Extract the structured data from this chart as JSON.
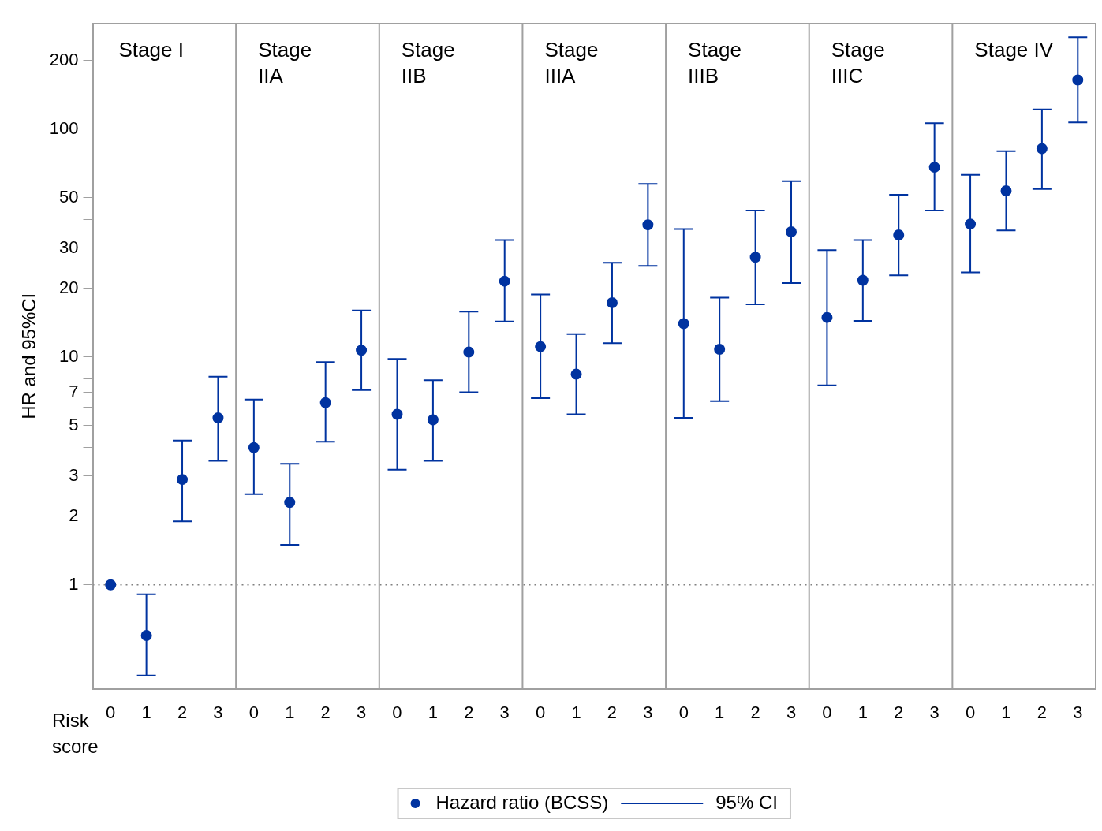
{
  "chart_data": {
    "type": "scatter",
    "categories": [
      "0",
      "1",
      "2",
      "3",
      "0",
      "1",
      "2",
      "3",
      "0",
      "1",
      "2",
      "3",
      "0",
      "1",
      "2",
      "3",
      "0",
      "1",
      "2",
      "3",
      "0",
      "1",
      "2",
      "3",
      "0",
      "1",
      "2",
      "3"
    ],
    "series": [
      {
        "name": "Hazard ratio (BCSS)",
        "color": "#0033a0",
        "values": [
          1.0,
          0.6,
          2.9,
          5.4,
          4.0,
          2.3,
          6.3,
          10.7,
          5.6,
          5.3,
          10.5,
          21.5,
          11.1,
          8.4,
          17.3,
          38,
          14.0,
          10.8,
          27.4,
          35.4,
          14.9,
          21.7,
          34.3,
          68,
          38.3,
          53.6,
          82,
          164
        ],
        "errors": [
          null,
          [
            0.4,
            0.91
          ],
          [
            1.9,
            4.3
          ],
          [
            3.5,
            8.2
          ],
          [
            2.5,
            6.5
          ],
          [
            1.5,
            3.4
          ],
          [
            4.25,
            9.5
          ],
          [
            7.15,
            16.0
          ],
          [
            3.2,
            9.8
          ],
          [
            3.5,
            7.9
          ],
          [
            7.0,
            15.8
          ],
          [
            14.3,
            32.6
          ],
          [
            6.6,
            18.8
          ],
          [
            5.6,
            12.6
          ],
          [
            11.5,
            25.9
          ],
          [
            25.1,
            57.5
          ],
          [
            5.4,
            36.4
          ],
          [
            6.4,
            18.2
          ],
          [
            17.0,
            43.9
          ],
          [
            21.1,
            59.1
          ],
          [
            7.5,
            29.4
          ],
          [
            14.4,
            32.6
          ],
          [
            22.8,
            51.5
          ],
          [
            43.9,
            106
          ],
          [
            23.5,
            62.9
          ],
          [
            35.9,
            80
          ],
          [
            54.5,
            122
          ],
          [
            107,
            253
          ]
        ]
      }
    ],
    "marker": "circle",
    "xlabel": "Risk score",
    "ylabel": "HR and 95%CI",
    "log": "y",
    "ylim": [
      0.35,
      290
    ],
    "yticks": [
      1,
      2,
      3,
      {
        "value": 4,
        "label": null
      },
      5,
      {
        "value": 6,
        "label": null
      },
      7,
      {
        "value": 8,
        "label": null
      },
      {
        "value": 9,
        "label": null
      },
      10,
      20,
      30,
      {
        "value": 40,
        "label": null
      },
      50,
      100,
      200
    ],
    "ref_lines": [
      {
        "axis": "y",
        "value": 1,
        "color": "#808080",
        "line_style": "dotted"
      }
    ],
    "annotations": [
      "Stage I",
      "Stage IIA",
      "Stage IIB",
      "Stage IIIA",
      "Stage IIIB",
      "Stage IIIC",
      "Stage IV",
      "95% CI"
    ],
    "grid": false,
    "legend": "bottom"
  }
}
